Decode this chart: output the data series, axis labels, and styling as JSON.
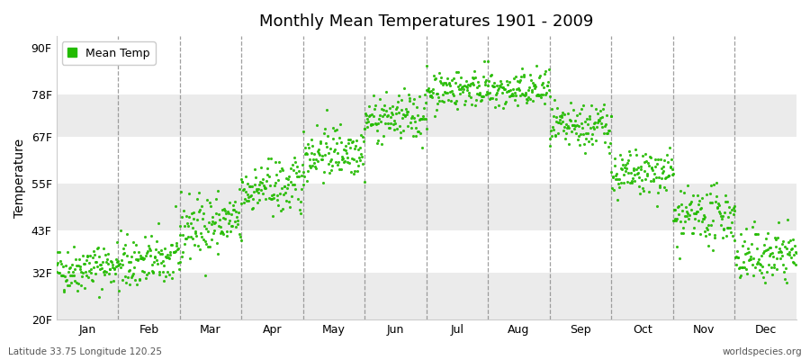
{
  "title": "Monthly Mean Temperatures 1901 - 2009",
  "ylabel": "Temperature",
  "ytick_labels": [
    "20F",
    "32F",
    "43F",
    "55F",
    "67F",
    "78F",
    "90F"
  ],
  "ytick_values": [
    20,
    32,
    43,
    55,
    67,
    78,
    90
  ],
  "ylim": [
    20,
    93
  ],
  "month_labels": [
    "Jan",
    "Feb",
    "Mar",
    "Apr",
    "May",
    "Jun",
    "Jul",
    "Aug",
    "Sep",
    "Oct",
    "Nov",
    "Dec"
  ],
  "dot_color": "#22bb00",
  "background_color": "#ffffff",
  "band_color_light": "#ffffff",
  "band_color_dark": "#ebebeb",
  "footer_left": "Latitude 33.75 Longitude 120.25",
  "footer_right": "worldspecies.org",
  "legend_label": "Mean Temp",
  "n_years": 109,
  "month_mean_temps": [
    33.5,
    35.0,
    44.5,
    54.0,
    63.5,
    72.0,
    79.5,
    79.0,
    69.5,
    57.5,
    46.5,
    36.5
  ],
  "month_std_temps": [
    3.0,
    3.5,
    4.0,
    3.5,
    3.5,
    3.0,
    2.5,
    2.5,
    3.0,
    3.0,
    3.5,
    3.5
  ],
  "month_trend": [
    0.015,
    0.015,
    0.015,
    0.012,
    0.012,
    0.01,
    0.01,
    0.01,
    0.012,
    0.012,
    0.015,
    0.015
  ],
  "seed": 42
}
